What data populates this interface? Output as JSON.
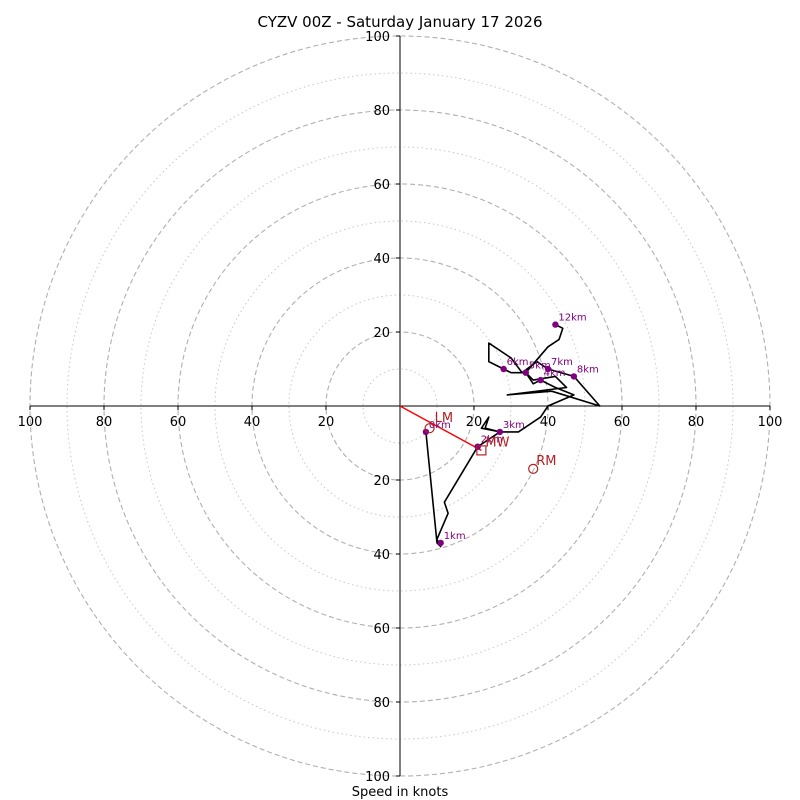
{
  "chart_data": {
    "type": "hodograph",
    "title": "CYZV 00Z - Saturday January 17 2026",
    "xlabel": "Speed in knots",
    "axis_range": [
      -100,
      100
    ],
    "ring_major": [
      20,
      40,
      60,
      80,
      100
    ],
    "ring_minor": [
      10,
      30,
      50,
      70,
      90
    ],
    "x_ticks": [
      -100,
      -80,
      -60,
      -40,
      -20,
      20,
      40,
      60,
      80,
      100
    ],
    "x_tick_labels": [
      "100",
      "80",
      "60",
      "40",
      "20",
      "20",
      "40",
      "60",
      "80",
      "100"
    ],
    "y_ticks": [
      100,
      80,
      60,
      40,
      20,
      -20,
      -40,
      -60,
      -80,
      -100
    ],
    "y_tick_labels": [
      "100",
      "80",
      "60",
      "40",
      "20",
      "20",
      "40",
      "60",
      "80",
      "100"
    ],
    "trace": [
      [
        7,
        -7
      ],
      [
        10,
        -37
      ],
      [
        11,
        -38
      ],
      [
        10,
        -36
      ],
      [
        13,
        -29
      ],
      [
        12,
        -26
      ],
      [
        21,
        -11
      ],
      [
        27,
        -7
      ],
      [
        22,
        -6
      ],
      [
        24,
        -3
      ],
      [
        23,
        -6
      ],
      [
        27,
        -7
      ],
      [
        32,
        -7
      ],
      [
        38,
        -3
      ],
      [
        40,
        0
      ],
      [
        47,
        3
      ],
      [
        42,
        5
      ],
      [
        38,
        7
      ],
      [
        36,
        6
      ],
      [
        34,
        9
      ],
      [
        30,
        9
      ],
      [
        28,
        10
      ],
      [
        24,
        12
      ],
      [
        24,
        17
      ],
      [
        30,
        13
      ],
      [
        33,
        9
      ],
      [
        37,
        12
      ],
      [
        40,
        10
      ],
      [
        47,
        8
      ],
      [
        54,
        0
      ],
      [
        41,
        4
      ],
      [
        29,
        3
      ],
      [
        45,
        5
      ],
      [
        42,
        8
      ],
      [
        36,
        7
      ],
      [
        34,
        9
      ],
      [
        40,
        16
      ],
      [
        43,
        18
      ],
      [
        44,
        21
      ],
      [
        42,
        22
      ]
    ],
    "height_markers": [
      {
        "label": "0km",
        "u": 7,
        "v": -7
      },
      {
        "label": "1km",
        "u": 11,
        "v": -37
      },
      {
        "label": "2km",
        "u": 21,
        "v": -11
      },
      {
        "label": "3km",
        "u": 27,
        "v": -7
      },
      {
        "label": "4km",
        "u": 38,
        "v": 7
      },
      {
        "label": "5km",
        "u": 34,
        "v": 9
      },
      {
        "label": "6km",
        "u": 28,
        "v": 10
      },
      {
        "label": "7km",
        "u": 40,
        "v": 10
      },
      {
        "label": "8km",
        "u": 47,
        "v": 8
      },
      {
        "label": "12km",
        "u": 42,
        "v": 22
      }
    ],
    "storm_motion": {
      "LM": {
        "label": "LM",
        "u": 8,
        "v": -6
      },
      "MW": {
        "label": "MW",
        "u": 22,
        "v": -12
      },
      "RM": {
        "label": "RM",
        "u": 36,
        "v": -17
      }
    },
    "mean_wind_line": {
      "from": [
        0,
        0
      ],
      "to": [
        22,
        -12
      ],
      "color": "#ff0000"
    },
    "colors": {
      "trace": "#000000",
      "markers": "#800080",
      "motion": "#b22222",
      "rings": "#b0b0b0"
    }
  }
}
